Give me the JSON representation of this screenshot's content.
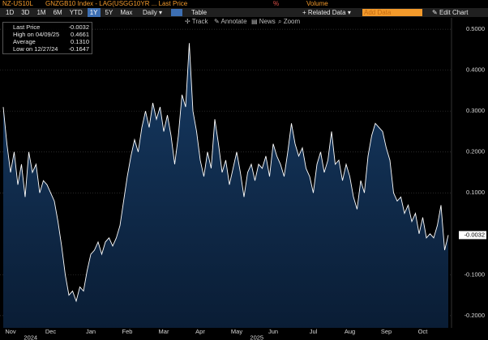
{
  "toolbar": {
    "security": "NZ-US10L",
    "description": "GNZGB10 Index - LAG(USGG10YR ... Last Price",
    "unit": "%",
    "volume": "Volume",
    "ranges": [
      "1D",
      "3D",
      "1M",
      "6M",
      "YTD",
      "1Y",
      "5Y",
      "Max"
    ],
    "frequency": "Daily",
    "table": "Table",
    "related": "Related Data",
    "add_data": "Add Data",
    "edit": "Edit Chart",
    "tools": [
      "Track",
      "Annotate",
      "News",
      "Zoom"
    ]
  },
  "chart_data": {
    "type": "area",
    "categories": [
      null,
      null,
      "Nov",
      null,
      null,
      null,
      null,
      null,
      null,
      null,
      null,
      null,
      null,
      "Dec",
      null,
      null,
      null,
      null,
      null,
      null,
      null,
      null,
      null,
      null,
      "Jan",
      null,
      null,
      null,
      null,
      null,
      null,
      null,
      null,
      null,
      "Feb",
      null,
      null,
      null,
      null,
      null,
      null,
      null,
      null,
      null,
      "Mar",
      null,
      null,
      null,
      null,
      null,
      null,
      null,
      null,
      null,
      "Apr",
      null,
      null,
      null,
      null,
      null,
      null,
      null,
      null,
      null,
      "May",
      null,
      null,
      null,
      null,
      null,
      null,
      null,
      null,
      null,
      "Jun",
      null,
      null,
      null,
      null,
      null,
      null,
      null,
      null,
      null,
      null,
      "Jul",
      null,
      null,
      null,
      null,
      null,
      null,
      null,
      null,
      null,
      "Aug",
      null,
      null,
      null,
      null,
      null,
      null,
      null,
      null,
      null,
      "Sep",
      null,
      null,
      null,
      null,
      null,
      null,
      null,
      null,
      null,
      "Oct",
      null,
      null,
      null,
      null,
      null,
      null,
      null
    ],
    "x_groups": [
      {
        "label": "2024",
        "count": 2
      },
      {
        "label": "2025",
        "count": 10
      }
    ],
    "series": [
      {
        "name": "Last Price",
        "color": "#ffffff",
        "fill": "#0f2a4a",
        "values": [
          0.31,
          0.22,
          0.15,
          0.2,
          0.12,
          0.17,
          0.09,
          0.2,
          0.15,
          0.17,
          0.1,
          0.13,
          0.12,
          0.1,
          0.08,
          0.03,
          -0.03,
          -0.1,
          -0.15,
          -0.14,
          -0.1647,
          -0.13,
          -0.14,
          -0.09,
          -0.05,
          -0.04,
          -0.02,
          -0.05,
          -0.02,
          -0.01,
          -0.03,
          -0.01,
          0.02,
          0.08,
          0.14,
          0.19,
          0.23,
          0.2,
          0.26,
          0.3,
          0.26,
          0.32,
          0.28,
          0.31,
          0.25,
          0.29,
          0.24,
          0.17,
          0.24,
          0.34,
          0.31,
          0.4661,
          0.3,
          0.25,
          0.18,
          0.14,
          0.2,
          0.16,
          0.28,
          0.22,
          0.15,
          0.18,
          0.12,
          0.16,
          0.2,
          0.15,
          0.09,
          0.15,
          0.17,
          0.13,
          0.17,
          0.16,
          0.19,
          0.14,
          0.22,
          0.19,
          0.17,
          0.14,
          0.2,
          0.27,
          0.22,
          0.19,
          0.21,
          0.16,
          0.14,
          0.1,
          0.17,
          0.2,
          0.15,
          0.18,
          0.25,
          0.17,
          0.18,
          0.13,
          0.17,
          0.14,
          0.09,
          0.06,
          0.13,
          0.1,
          0.19,
          0.24,
          0.27,
          0.26,
          0.25,
          0.21,
          0.18,
          0.1,
          0.08,
          0.09,
          0.05,
          0.07,
          0.03,
          0.05,
          0.0,
          0.04,
          -0.01,
          0.0,
          -0.01,
          0.02,
          0.07,
          -0.04,
          -0.0032
        ]
      }
    ],
    "stats": [
      {
        "label": "Last Price",
        "value": "-0.0032"
      },
      {
        "label": "High on 04/09/25",
        "value": "0.4661"
      },
      {
        "label": "Average",
        "value": "0.1310"
      },
      {
        "label": "Low on 12/27/24",
        "value": "-0.1647"
      }
    ],
    "ylim": [
      -0.23,
      0.528
    ],
    "yticks": [
      {
        "value": 0.5,
        "label": "0.5000"
      },
      {
        "value": 0.4,
        "label": "0.4000"
      },
      {
        "value": 0.3,
        "label": "0.3000"
      },
      {
        "value": 0.2,
        "label": "0.2000"
      },
      {
        "value": 0.1,
        "label": "0.1000"
      },
      {
        "value": -0.1,
        "label": "-0.1000"
      },
      {
        "value": -0.2,
        "label": "-0.2000"
      }
    ],
    "grid": true
  }
}
